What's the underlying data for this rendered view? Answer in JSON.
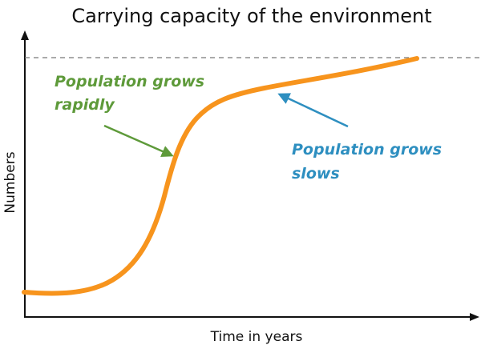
{
  "title": "Carrying capacity of the environment",
  "xlabel": "Time in years",
  "ylabel": "Numbers",
  "annotations": {
    "rapid": {
      "line1": "Population grows",
      "line2": "rapidly"
    },
    "slow": {
      "line1": "Population grows",
      "line2": "slows"
    }
  },
  "colors": {
    "curve": "#F7941D",
    "rapid": "#5E9A3A",
    "slow": "#2E8FC0",
    "carrying_capacity_line": "#777777",
    "axes": "#111111"
  },
  "icons": [
    "arrow-up-icon",
    "arrow-right-icon"
  ]
}
